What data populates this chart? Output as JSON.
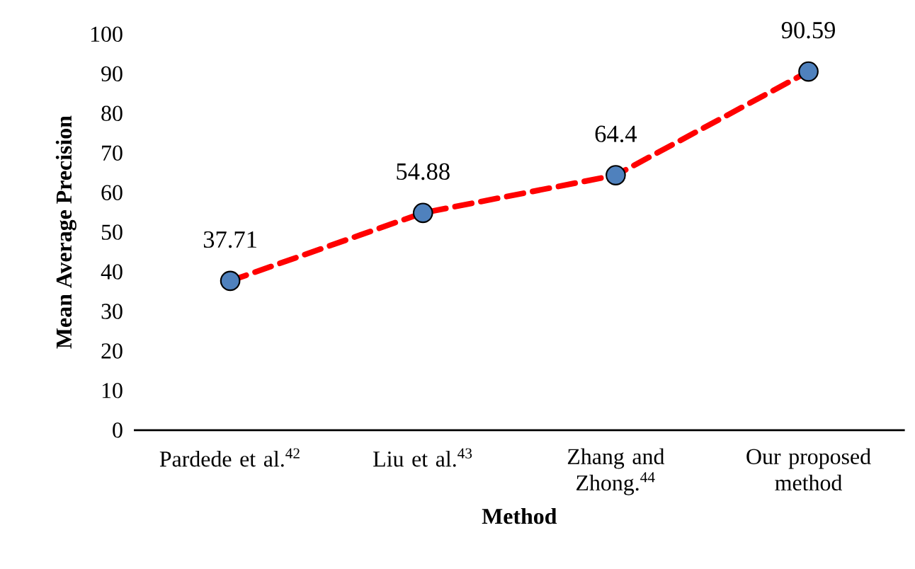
{
  "chart_data": {
    "type": "line",
    "categories": [
      "Pardede et al.$^{42}$",
      "Liu et al.$^{43}$",
      "Zhang and Zhong.$^{44}$",
      "Our proposed method"
    ],
    "series": [
      {
        "color": "#ff0000",
        "colors": [
          "#4f81bd",
          "#4f81bd",
          "#4f81bd",
          "#4f81bd"
        ],
        "values": [
          37.71,
          54.88,
          64.4,
          90.59
        ]
      }
    ],
    "xlabel": "Method",
    "ylabel": "Mean Average Precision",
    "ylim": [
      0,
      100
    ],
    "yticks": [
      0,
      10,
      20,
      30,
      40,
      50,
      60,
      70,
      80,
      90,
      100
    ],
    "data_labels": true,
    "grid": false,
    "marker": "circle",
    "line_style": "dashed"
  }
}
